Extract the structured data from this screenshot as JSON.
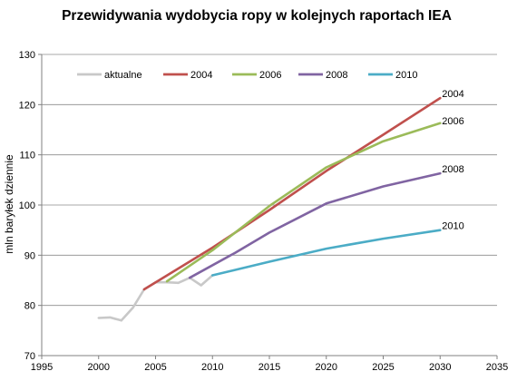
{
  "chart_data": {
    "type": "line",
    "title": "Przewidywania wydobycia ropy w kolejnych raportach IEA",
    "xlabel": "",
    "ylabel": "mln baryłek dziennie",
    "xlim": [
      1995,
      2035
    ],
    "ylim": [
      70,
      130
    ],
    "x_ticks": [
      1995,
      2000,
      2005,
      2010,
      2015,
      2020,
      2025,
      2030,
      2035
    ],
    "y_ticks": [
      70,
      80,
      90,
      100,
      110,
      120,
      130
    ],
    "grid": true,
    "legend_position": "top",
    "series": [
      {
        "name": "aktualne",
        "color": "#c8c8c8",
        "end_label": "",
        "points": [
          [
            2000,
            77.5
          ],
          [
            2001,
            77.6
          ],
          [
            2002,
            77.0
          ],
          [
            2003,
            79.5
          ],
          [
            2004,
            83.2
          ],
          [
            2005,
            84.6
          ],
          [
            2006,
            84.6
          ],
          [
            2007,
            84.5
          ],
          [
            2008,
            85.5
          ],
          [
            2009,
            84.0
          ],
          [
            2010,
            86.0
          ]
        ]
      },
      {
        "name": "2004",
        "color": "#c0504d",
        "end_label": "2004",
        "points": [
          [
            2004,
            83.2
          ],
          [
            2010,
            91.5
          ],
          [
            2015,
            99.0
          ],
          [
            2020,
            106.8
          ],
          [
            2025,
            114.0
          ],
          [
            2030,
            121.3
          ]
        ]
      },
      {
        "name": "2006",
        "color": "#9bbb59",
        "end_label": "2006",
        "points": [
          [
            2006,
            84.8
          ],
          [
            2010,
            91.0
          ],
          [
            2015,
            99.8
          ],
          [
            2020,
            107.5
          ],
          [
            2025,
            112.7
          ],
          [
            2030,
            116.3
          ]
        ]
      },
      {
        "name": "2008",
        "color": "#8064a2",
        "end_label": "2008",
        "points": [
          [
            2008,
            85.5
          ],
          [
            2012,
            90.5
          ],
          [
            2015,
            94.5
          ],
          [
            2020,
            100.3
          ],
          [
            2025,
            103.7
          ],
          [
            2030,
            106.3
          ]
        ]
      },
      {
        "name": "2010",
        "color": "#4bacc6",
        "end_label": "2010",
        "points": [
          [
            2010,
            86.0
          ],
          [
            2015,
            88.7
          ],
          [
            2020,
            91.3
          ],
          [
            2025,
            93.3
          ],
          [
            2030,
            95.0
          ]
        ]
      }
    ]
  }
}
